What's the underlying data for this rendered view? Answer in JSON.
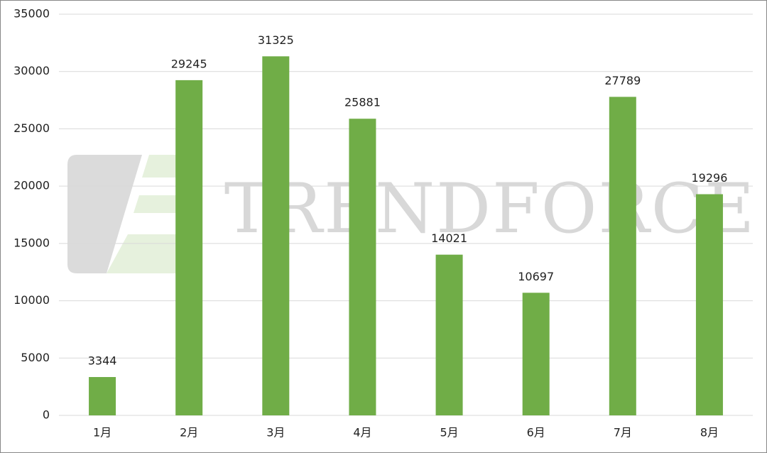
{
  "chart_data": {
    "type": "bar",
    "watermark": "TRENDFORCE",
    "categories": [
      "1月",
      "2月",
      "3月",
      "4月",
      "5月",
      "6月",
      "7月",
      "8月"
    ],
    "values": [
      3344,
      29245,
      31325,
      25881,
      14021,
      10697,
      27789,
      19296
    ],
    "color": "#70ad47",
    "ylim": [
      0,
      35000
    ],
    "yticks": [
      0,
      5000,
      10000,
      15000,
      20000,
      25000,
      30000,
      35000
    ],
    "grid": true
  }
}
